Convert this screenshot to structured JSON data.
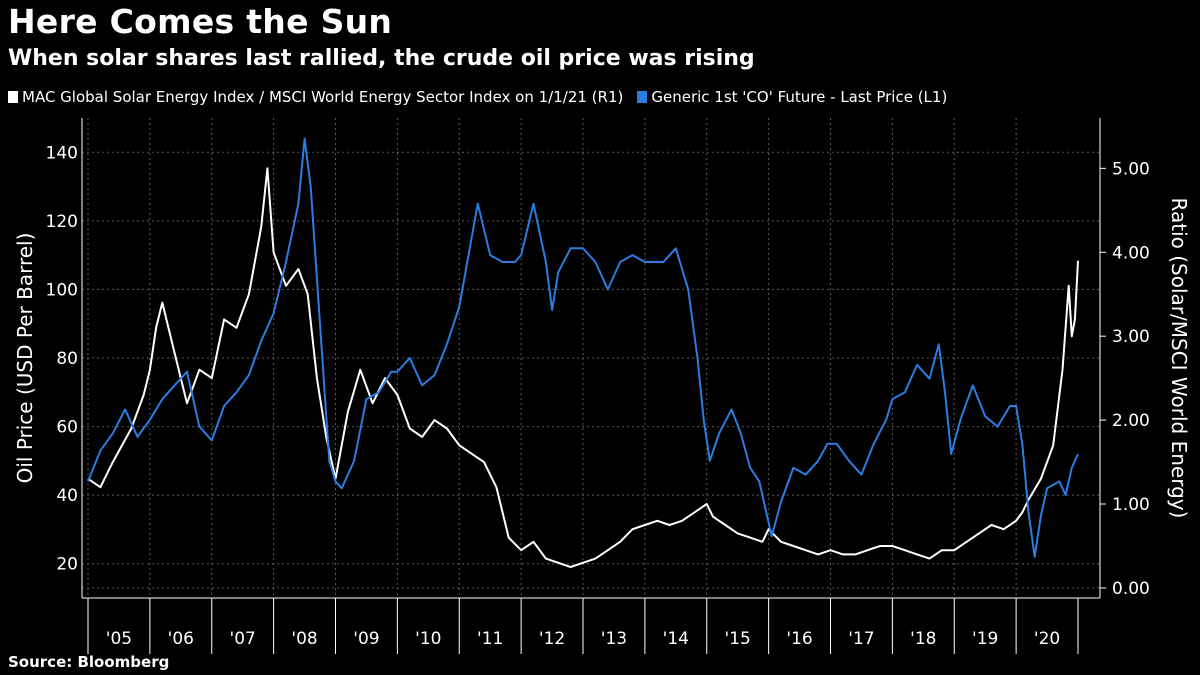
{
  "header": {
    "title": "Here Comes the Sun",
    "subtitle": "When solar shares last rallied, the crude oil price was rising"
  },
  "legend": [
    {
      "label": "MAC Global Solar Energy Index / MSCI World Energy Sector Index on 1/1/21 (R1)",
      "color": "#ffffff"
    },
    {
      "label": "Generic 1st 'CO' Future - Last Price (L1)",
      "color": "#2a7de1"
    }
  ],
  "footer": {
    "source": "Source: Bloomberg"
  },
  "chart_data": {
    "type": "line",
    "left_axis": {
      "label": "Oil Price (USD Per Barrel)",
      "ticks": [
        20,
        40,
        60,
        80,
        100,
        120,
        140
      ],
      "range": [
        10,
        150
      ]
    },
    "right_axis": {
      "label": "Ratio (Solar/MSCI World Energy)",
      "ticks": [
        "0.00",
        "1.00",
        "2.00",
        "3.00",
        "4.00",
        "5.00"
      ],
      "range": [
        -0.12,
        5.6
      ]
    },
    "x_tick_labels": [
      "'05",
      "'06",
      "'07",
      "'08",
      "'09",
      "'10",
      "'11",
      "'12",
      "'13",
      "'14",
      "'15",
      "'16",
      "'17",
      "'18",
      "'19",
      "'20"
    ],
    "grid": true,
    "series": [
      {
        "name": "Generic 1st 'CO' Future - Last Price (L1)",
        "axis": "left",
        "color": "#2a7de1",
        "points": [
          [
            2005.0,
            44
          ],
          [
            2005.2,
            53
          ],
          [
            2005.4,
            58
          ],
          [
            2005.6,
            65
          ],
          [
            2005.8,
            57
          ],
          [
            2006.0,
            62
          ],
          [
            2006.2,
            68
          ],
          [
            2006.4,
            72
          ],
          [
            2006.6,
            76
          ],
          [
            2006.8,
            60
          ],
          [
            2007.0,
            56
          ],
          [
            2007.2,
            66
          ],
          [
            2007.4,
            70
          ],
          [
            2007.6,
            75
          ],
          [
            2007.8,
            85
          ],
          [
            2008.0,
            93
          ],
          [
            2008.2,
            108
          ],
          [
            2008.4,
            125
          ],
          [
            2008.5,
            144
          ],
          [
            2008.6,
            130
          ],
          [
            2008.75,
            90
          ],
          [
            2008.9,
            50
          ],
          [
            2009.0,
            44
          ],
          [
            2009.1,
            42
          ],
          [
            2009.3,
            50
          ],
          [
            2009.5,
            68
          ],
          [
            2009.7,
            70
          ],
          [
            2009.9,
            76
          ],
          [
            2010.0,
            76
          ],
          [
            2010.2,
            80
          ],
          [
            2010.4,
            72
          ],
          [
            2010.6,
            75
          ],
          [
            2010.8,
            84
          ],
          [
            2011.0,
            95
          ],
          [
            2011.2,
            115
          ],
          [
            2011.3,
            125
          ],
          [
            2011.5,
            110
          ],
          [
            2011.7,
            108
          ],
          [
            2011.9,
            108
          ],
          [
            2012.0,
            110
          ],
          [
            2012.2,
            125
          ],
          [
            2012.4,
            108
          ],
          [
            2012.5,
            94
          ],
          [
            2012.6,
            105
          ],
          [
            2012.8,
            112
          ],
          [
            2013.0,
            112
          ],
          [
            2013.2,
            108
          ],
          [
            2013.4,
            100
          ],
          [
            2013.6,
            108
          ],
          [
            2013.8,
            110
          ],
          [
            2014.0,
            108
          ],
          [
            2014.3,
            108
          ],
          [
            2014.5,
            112
          ],
          [
            2014.7,
            100
          ],
          [
            2014.85,
            80
          ],
          [
            2014.95,
            62
          ],
          [
            2015.05,
            50
          ],
          [
            2015.2,
            58
          ],
          [
            2015.4,
            65
          ],
          [
            2015.55,
            58
          ],
          [
            2015.7,
            48
          ],
          [
            2015.85,
            44
          ],
          [
            2015.95,
            36
          ],
          [
            2016.05,
            28
          ],
          [
            2016.2,
            38
          ],
          [
            2016.4,
            48
          ],
          [
            2016.6,
            46
          ],
          [
            2016.8,
            50
          ],
          [
            2016.95,
            55
          ],
          [
            2017.1,
            55
          ],
          [
            2017.3,
            50
          ],
          [
            2017.5,
            46
          ],
          [
            2017.7,
            55
          ],
          [
            2017.9,
            62
          ],
          [
            2018.0,
            68
          ],
          [
            2018.2,
            70
          ],
          [
            2018.4,
            78
          ],
          [
            2018.6,
            74
          ],
          [
            2018.75,
            84
          ],
          [
            2018.85,
            70
          ],
          [
            2018.95,
            52
          ],
          [
            2019.1,
            62
          ],
          [
            2019.3,
            72
          ],
          [
            2019.5,
            63
          ],
          [
            2019.7,
            60
          ],
          [
            2019.9,
            66
          ],
          [
            2020.0,
            66
          ],
          [
            2020.1,
            55
          ],
          [
            2020.2,
            35
          ],
          [
            2020.3,
            22
          ],
          [
            2020.4,
            34
          ],
          [
            2020.5,
            42
          ],
          [
            2020.7,
            44
          ],
          [
            2020.8,
            40
          ],
          [
            2020.9,
            48
          ],
          [
            2021.0,
            52
          ]
        ]
      },
      {
        "name": "MAC Global Solar Energy Index / MSCI World Energy Sector Index on 1/1/21 (R1)",
        "axis": "right",
        "color": "#ffffff",
        "points": [
          [
            2005.0,
            1.3
          ],
          [
            2005.2,
            1.2
          ],
          [
            2005.4,
            1.5
          ],
          [
            2005.7,
            1.9
          ],
          [
            2005.9,
            2.3
          ],
          [
            2006.0,
            2.6
          ],
          [
            2006.1,
            3.1
          ],
          [
            2006.2,
            3.4
          ],
          [
            2006.4,
            2.8
          ],
          [
            2006.6,
            2.2
          ],
          [
            2006.8,
            2.6
          ],
          [
            2007.0,
            2.5
          ],
          [
            2007.2,
            3.2
          ],
          [
            2007.4,
            3.1
          ],
          [
            2007.6,
            3.5
          ],
          [
            2007.8,
            4.3
          ],
          [
            2007.9,
            5.0
          ],
          [
            2008.0,
            4.0
          ],
          [
            2008.2,
            3.6
          ],
          [
            2008.4,
            3.8
          ],
          [
            2008.55,
            3.5
          ],
          [
            2008.7,
            2.5
          ],
          [
            2008.85,
            1.8
          ],
          [
            2009.0,
            1.3
          ],
          [
            2009.2,
            2.1
          ],
          [
            2009.4,
            2.6
          ],
          [
            2009.6,
            2.2
          ],
          [
            2009.8,
            2.5
          ],
          [
            2010.0,
            2.3
          ],
          [
            2010.2,
            1.9
          ],
          [
            2010.4,
            1.8
          ],
          [
            2010.6,
            2.0
          ],
          [
            2010.8,
            1.9
          ],
          [
            2011.0,
            1.7
          ],
          [
            2011.2,
            1.6
          ],
          [
            2011.4,
            1.5
          ],
          [
            2011.6,
            1.2
          ],
          [
            2011.8,
            0.6
          ],
          [
            2012.0,
            0.45
          ],
          [
            2012.2,
            0.55
          ],
          [
            2012.4,
            0.35
          ],
          [
            2012.6,
            0.3
          ],
          [
            2012.8,
            0.25
          ],
          [
            2013.0,
            0.3
          ],
          [
            2013.2,
            0.35
          ],
          [
            2013.4,
            0.45
          ],
          [
            2013.6,
            0.55
          ],
          [
            2013.8,
            0.7
          ],
          [
            2014.0,
            0.75
          ],
          [
            2014.2,
            0.8
          ],
          [
            2014.4,
            0.75
          ],
          [
            2014.6,
            0.8
          ],
          [
            2014.8,
            0.9
          ],
          [
            2015.0,
            1.0
          ],
          [
            2015.1,
            0.85
          ],
          [
            2015.3,
            0.75
          ],
          [
            2015.5,
            0.65
          ],
          [
            2015.7,
            0.6
          ],
          [
            2015.9,
            0.55
          ],
          [
            2016.0,
            0.7
          ],
          [
            2016.2,
            0.55
          ],
          [
            2016.4,
            0.5
          ],
          [
            2016.6,
            0.45
          ],
          [
            2016.8,
            0.4
          ],
          [
            2017.0,
            0.45
          ],
          [
            2017.2,
            0.4
          ],
          [
            2017.4,
            0.4
          ],
          [
            2017.6,
            0.45
          ],
          [
            2017.8,
            0.5
          ],
          [
            2018.0,
            0.5
          ],
          [
            2018.2,
            0.45
          ],
          [
            2018.4,
            0.4
          ],
          [
            2018.6,
            0.35
          ],
          [
            2018.8,
            0.45
          ],
          [
            2019.0,
            0.45
          ],
          [
            2019.2,
            0.55
          ],
          [
            2019.4,
            0.65
          ],
          [
            2019.6,
            0.75
          ],
          [
            2019.8,
            0.7
          ],
          [
            2020.0,
            0.8
          ],
          [
            2020.1,
            0.9
          ],
          [
            2020.2,
            1.05
          ],
          [
            2020.4,
            1.3
          ],
          [
            2020.6,
            1.7
          ],
          [
            2020.75,
            2.6
          ],
          [
            2020.85,
            3.6
          ],
          [
            2020.9,
            3.0
          ],
          [
            2020.95,
            3.2
          ],
          [
            2021.0,
            3.9
          ]
        ]
      }
    ]
  }
}
